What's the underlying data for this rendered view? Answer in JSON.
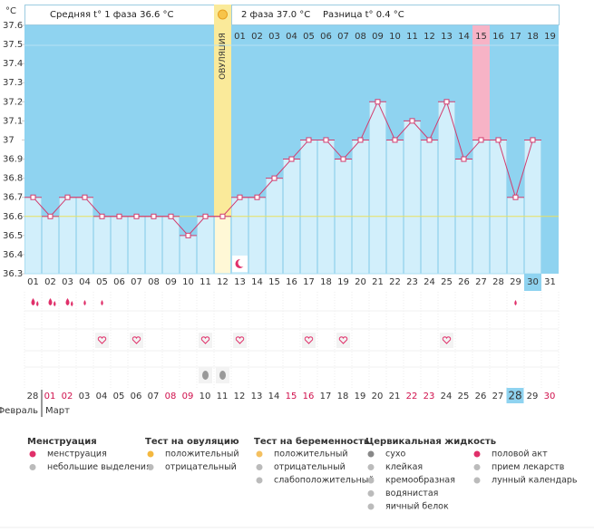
{
  "chart_data": {
    "type": "line",
    "y_unit": "°C",
    "header": {
      "phase1": "Средняя t° 1 фаза 36.6 °C",
      "phase2": "2 фаза 37.0 °C",
      "difference": "Разница t° 0.4 °C"
    },
    "ovulation_label": "ОВУЛЯЦИЯ",
    "cycle_days": [
      "01",
      "02",
      "03",
      "04",
      "05",
      "06",
      "07",
      "08",
      "09",
      "10",
      "11",
      "12",
      "13",
      "14",
      "15",
      "16",
      "17",
      "18",
      "19",
      "20",
      "21",
      "22",
      "23",
      "24",
      "25",
      "26",
      "27",
      "28",
      "29",
      "30",
      "31"
    ],
    "phase2_days": [
      "01",
      "02",
      "03",
      "04",
      "05",
      "06",
      "07",
      "08",
      "09",
      "10",
      "11",
      "12",
      "13",
      "14",
      "15",
      "16",
      "17",
      "18",
      "19"
    ],
    "values": [
      36.7,
      36.6,
      36.7,
      36.7,
      36.6,
      36.6,
      36.6,
      36.6,
      36.6,
      36.5,
      36.6,
      36.6,
      36.7,
      36.7,
      36.8,
      36.9,
      37.0,
      37.0,
      36.9,
      37.0,
      37.2,
      37.0,
      37.1,
      37.0,
      37.2,
      36.9,
      37.0,
      37.0,
      36.7,
      37.0,
      null
    ],
    "ylim": [
      36.3,
      37.6
    ],
    "yticks": [
      36.3,
      36.4,
      36.5,
      36.6,
      36.7,
      36.8,
      36.9,
      37,
      37.1,
      37.2,
      37.3,
      37.4,
      37.5,
      37.6
    ],
    "coverline": 36.6,
    "line_color": "#d23c6e",
    "bar_color": "#d2effb",
    "background_color": "#8fd3f0",
    "ovulation_color": "#faea9a",
    "highlight_color": "#f7b3c6",
    "dates": [
      "28",
      "01",
      "02",
      "03",
      "04",
      "05",
      "06",
      "07",
      "08",
      "09",
      "10",
      "11",
      "12",
      "13",
      "14",
      "15",
      "16",
      "17",
      "18",
      "19",
      "20",
      "21",
      "22",
      "23",
      "24",
      "25",
      "26",
      "27",
      "28",
      "29",
      "30"
    ],
    "date_colors": [
      "#333",
      "#d0104c",
      "#d0104c",
      "#333",
      "#333",
      "#333",
      "#333",
      "#333",
      "#d0104c",
      "#d0104c",
      "#333",
      "#333",
      "#333",
      "#333",
      "#333",
      "#d0104c",
      "#d0104c",
      "#333",
      "#333",
      "#333",
      "#333",
      "#333",
      "#d0104c",
      "#d0104c",
      "#333",
      "#333",
      "#333",
      "#333",
      "#333",
      "#333",
      "#d0104c"
    ],
    "months": [
      "Февраль",
      "Март"
    ]
  },
  "legend": [
    {
      "title": "Менструация",
      "items": [
        "менструация",
        "небольшие выделения"
      ]
    },
    {
      "title": "Тест на овуляцию",
      "items": [
        "положительный",
        "отрицательный"
      ]
    },
    {
      "title": "Тест на беременность",
      "items": [
        "положительный",
        "отрицательный",
        "слабоположительный"
      ]
    },
    {
      "title": "Цервикальная жидкость",
      "items": [
        "сухо",
        "клейкая",
        "кремообразная",
        "водянистая",
        "яичный белок"
      ]
    },
    {
      "title": null,
      "items": [
        "половой акт",
        "прием лекарств",
        "лунный календарь"
      ]
    }
  ]
}
